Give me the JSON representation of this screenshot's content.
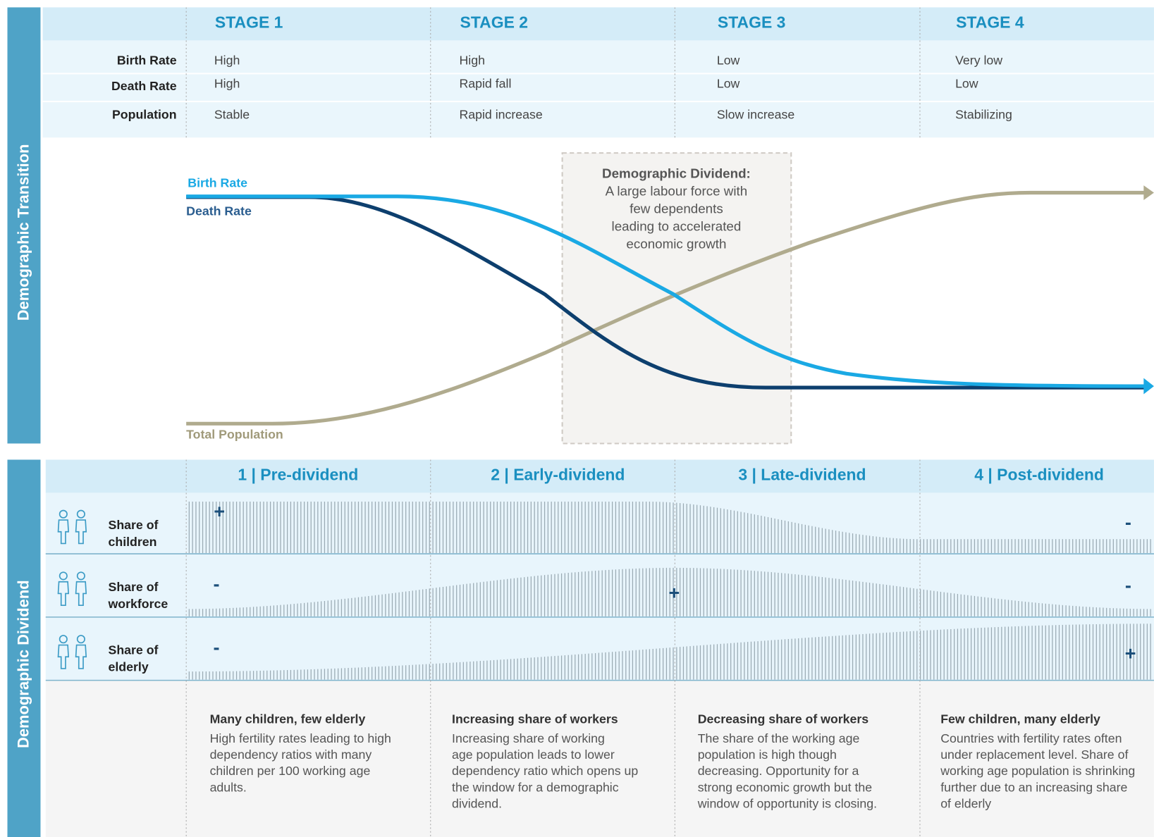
{
  "sidebar": {
    "top": "Demographic Transition",
    "bottom": "Demographic  Dividend"
  },
  "stages": [
    "STAGE 1",
    "STAGE 2",
    "STAGE 3",
    "STAGE 4"
  ],
  "table": {
    "rows": [
      {
        "label": "Birth Rate",
        "cells": [
          "High",
          "High",
          "Low",
          "Very low"
        ]
      },
      {
        "label": "Death Rate",
        "cells": [
          "High",
          "Rapid fall",
          "Low",
          "Low"
        ]
      },
      {
        "label": "Population",
        "cells": [
          "Stable",
          "Rapid increase",
          "Slow increase",
          "Stabilizing"
        ]
      }
    ]
  },
  "curves": {
    "birth": "Birth Rate",
    "death": "Death Rate",
    "population": "Total Population"
  },
  "dividend_box": {
    "title": "Demographic Dividend:",
    "lines": [
      "A large labour force with",
      "few dependents",
      "leading to accelerated",
      "economic growth"
    ]
  },
  "phases": [
    "1 | Pre-dividend",
    "2 | Early-dividend",
    "3 | Late-dividend",
    "4 | Post-dividend"
  ],
  "shares": [
    {
      "label": [
        "Share of",
        "children"
      ],
      "signs": [
        "+",
        "-"
      ]
    },
    {
      "label": [
        "Share of",
        "workforce"
      ],
      "signs": [
        "-",
        "+",
        "-"
      ]
    },
    {
      "label": [
        "Share of",
        "elderly"
      ],
      "signs": [
        "-",
        "+"
      ]
    }
  ],
  "descriptions": [
    {
      "title": "Many children, few elderly",
      "lines": [
        "High fertility rates leading to high",
        "dependency ratios with many",
        "children per 100 working age",
        "adults."
      ]
    },
    {
      "title": "Increasing share of workers",
      "lines": [
        "Increasing share of working",
        "age population leads to lower",
        "dependency ratio which opens up",
        "the window for a demographic",
        "dividend."
      ]
    },
    {
      "title": "Decreasing share of workers",
      "lines": [
        "The share of the working age",
        "population is high though",
        "decreasing. Opportunity for a",
        "strong economic growth but the",
        "window of opportunity is closing."
      ]
    },
    {
      "title": "Few children, many elderly",
      "lines": [
        "Countries with fertility rates often",
        "under replacement level. Share of",
        "working age population is shrinking",
        "further due to an increasing share",
        "of elderly"
      ]
    }
  ]
}
